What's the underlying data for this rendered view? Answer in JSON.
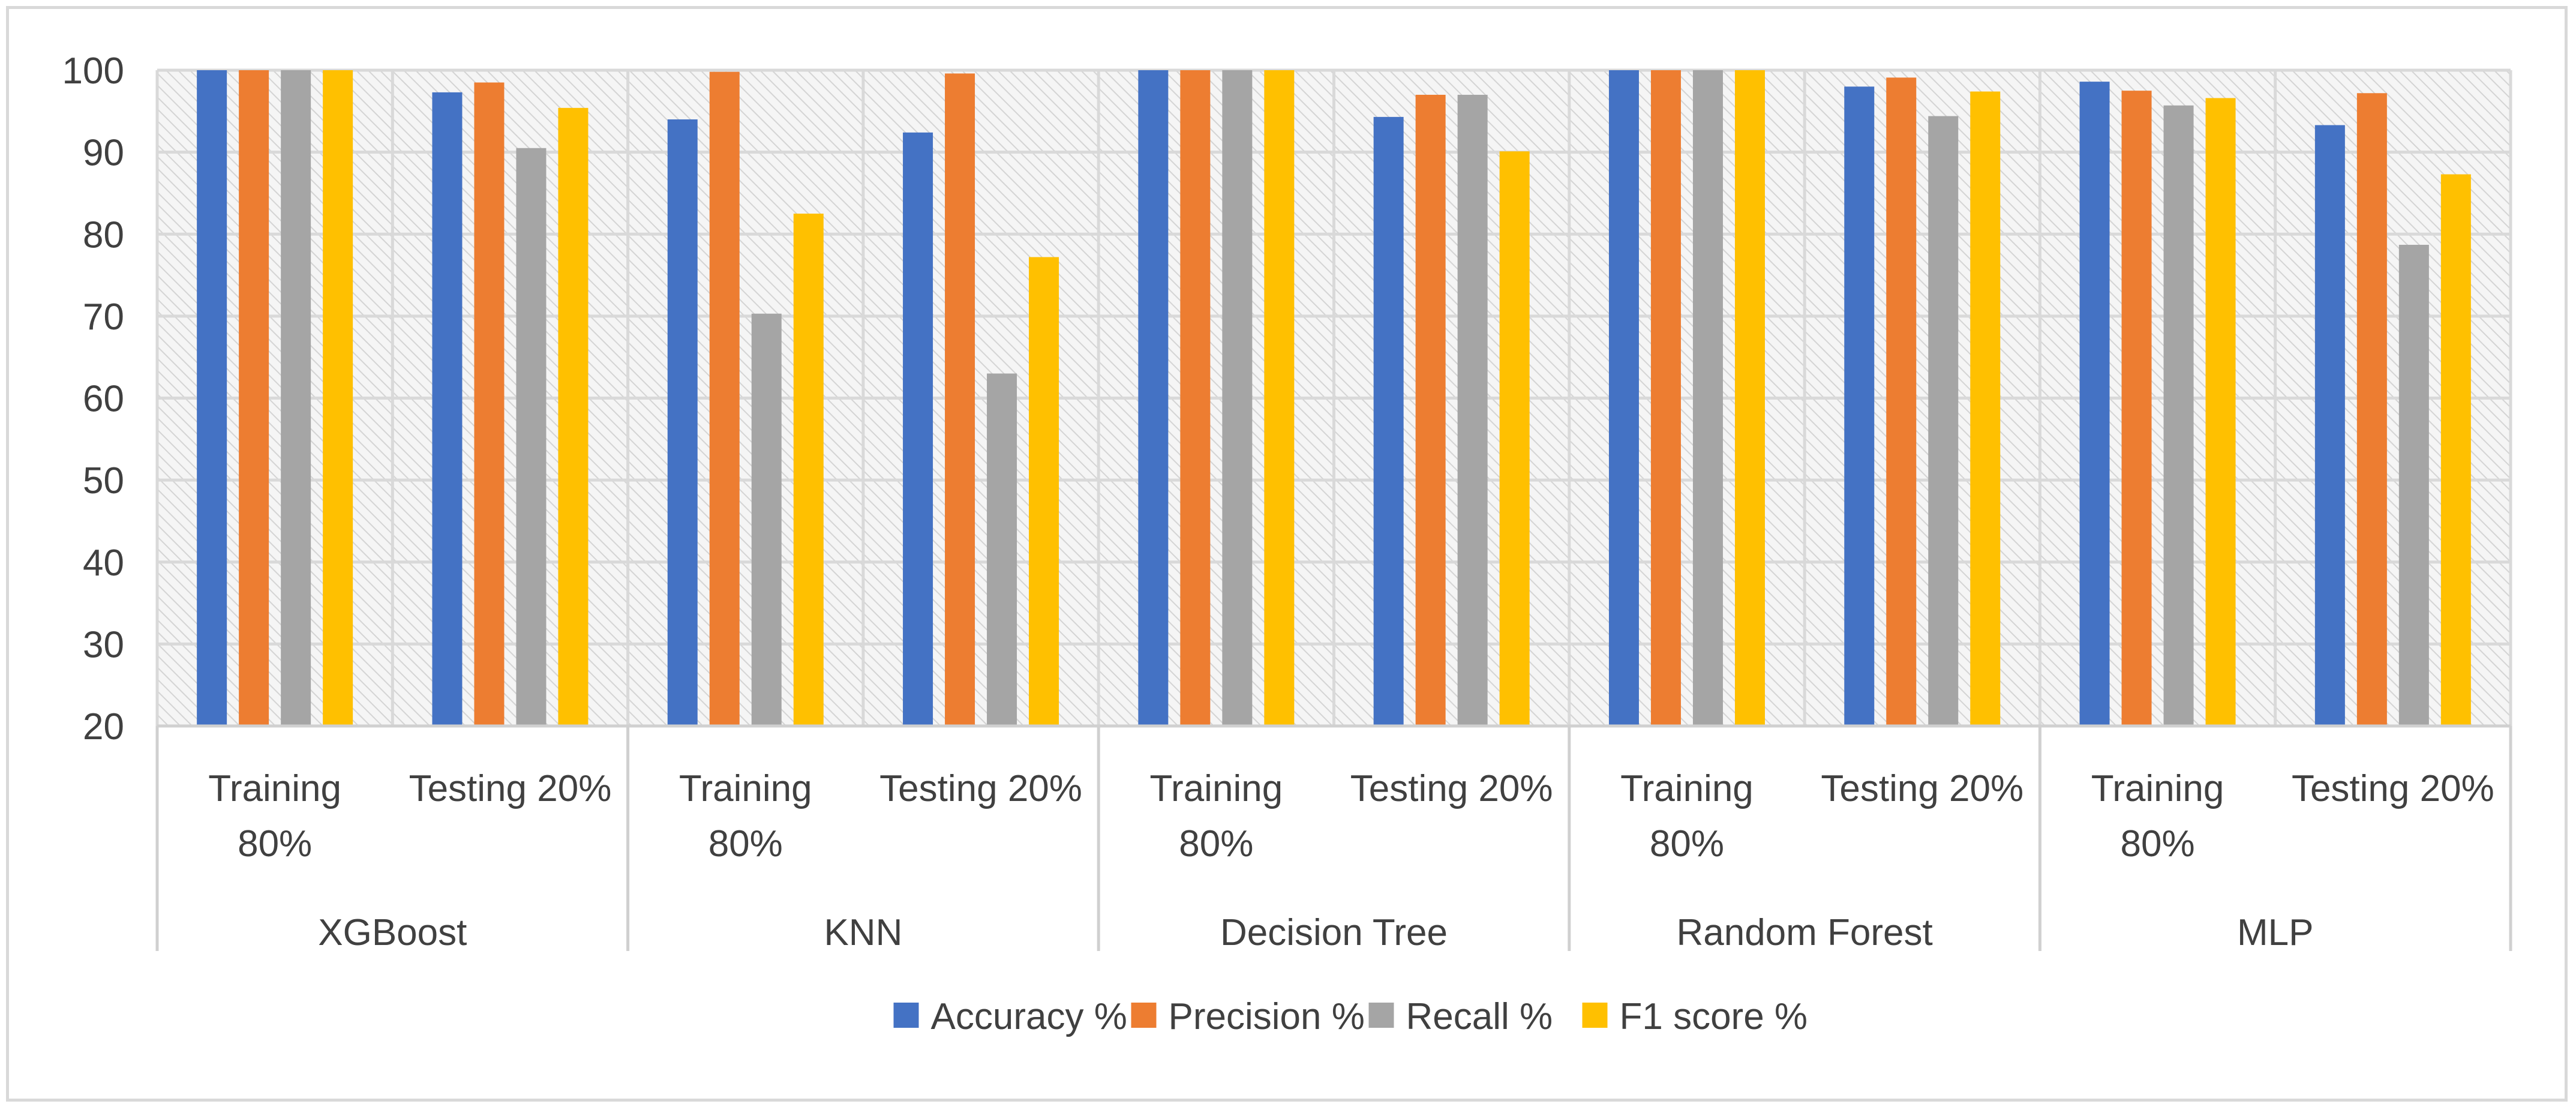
{
  "chart_data": {
    "type": "bar",
    "title": "",
    "xlabel": "",
    "ylabel": "",
    "ylim": [
      20,
      100
    ],
    "yticks": [
      20,
      30,
      40,
      50,
      60,
      70,
      80,
      90,
      100
    ],
    "grid": true,
    "legend_position": "bottom",
    "models": [
      "XGBoost",
      "KNN",
      "Decision Tree",
      "Random Forest",
      "MLP"
    ],
    "phases": [
      "Training 80%",
      "Testing 20%"
    ],
    "categories": [
      "XGBoost | Training 80%",
      "XGBoost | Testing 20%",
      "KNN | Training 80%",
      "KNN | Testing 20%",
      "Decision Tree | Training 80%",
      "Decision Tree | Testing 20%",
      "Random Forest | Training 80%",
      "Random Forest | Testing 20%",
      "MLP | Training 80%",
      "MLP | Testing 20%"
    ],
    "series": [
      {
        "name": "Accuracy %",
        "color": "#4472c4",
        "values": [
          100,
          97.3,
          94,
          92.4,
          100,
          94.3,
          100,
          98,
          98.6,
          93.3
        ]
      },
      {
        "name": "Precision %",
        "color": "#ed7d31",
        "values": [
          100,
          98.5,
          99.8,
          99.6,
          100,
          97,
          100,
          99.1,
          97.5,
          97.2
        ]
      },
      {
        "name": "Recall %",
        "color": "#a5a5a5",
        "values": [
          100,
          90.5,
          70.3,
          63,
          100,
          97,
          100,
          94.4,
          95.7,
          78.7
        ]
      },
      {
        "name": "F1 score %",
        "color": "#ffc000",
        "values": [
          100,
          95.4,
          82.5,
          77.2,
          100,
          90.1,
          100,
          97.4,
          96.6,
          87.3
        ]
      }
    ]
  }
}
